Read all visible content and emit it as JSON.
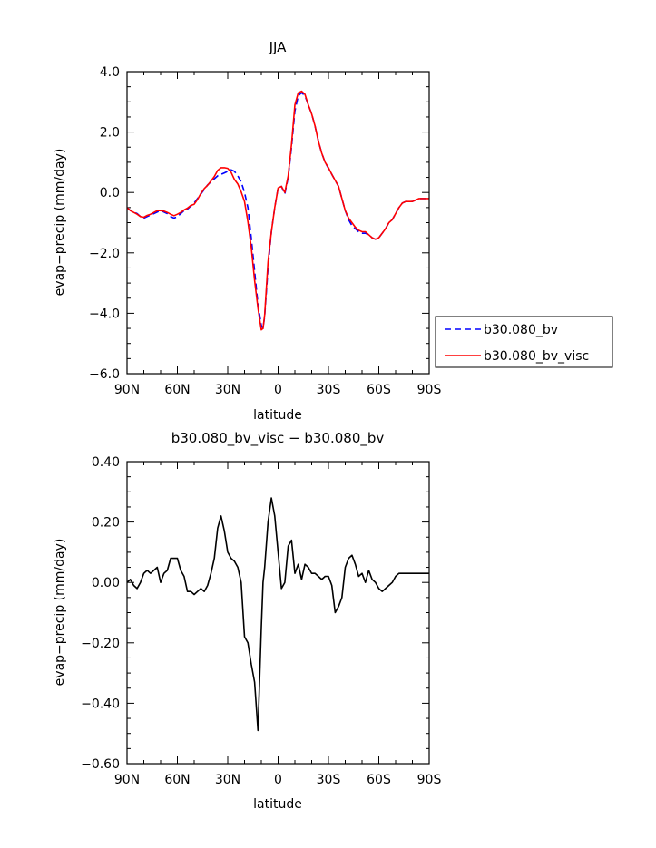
{
  "chart_data": [
    {
      "type": "line",
      "title": "JJA",
      "xlabel": "latitude",
      "ylabel": "evap−precip (mm/day)",
      "x_direction": "north-to-south",
      "xlim": [
        90,
        -90
      ],
      "ylim": [
        -6.0,
        4.0
      ],
      "x_ticks": [
        90,
        60,
        30,
        0,
        -30,
        -60,
        -90
      ],
      "x_tick_labels": [
        "90N",
        "60N",
        "30N",
        "0",
        "30S",
        "60S",
        "90S"
      ],
      "y_ticks": [
        -6.0,
        -4.0,
        -2.0,
        0.0,
        2.0,
        4.0
      ],
      "y_tick_labels": [
        "−6.0",
        "−4.0",
        "−2.0",
        "0.0",
        "2.0",
        "4.0"
      ],
      "legend_position": "right",
      "grid": false,
      "series": [
        {
          "name": "b30.080_bv",
          "color": "#0000ff",
          "dash": "dashed",
          "x": [
            90,
            88,
            86,
            84,
            82,
            80,
            78,
            76,
            74,
            72,
            70,
            68,
            66,
            64,
            62,
            60,
            58,
            56,
            54,
            52,
            50,
            48,
            46,
            44,
            42,
            40,
            38,
            36,
            34,
            32,
            30,
            28,
            26,
            24,
            22,
            20,
            18,
            16,
            14,
            12,
            10,
            9,
            8,
            6,
            4,
            2,
            0,
            -2,
            -4,
            -6,
            -8,
            -10,
            -12,
            -14,
            -16,
            -18,
            -20,
            -22,
            -24,
            -26,
            -28,
            -30,
            -32,
            -34,
            -36,
            -38,
            -40,
            -42,
            -44,
            -46,
            -48,
            -50,
            -52,
            -54,
            -56,
            -58,
            -60,
            -62,
            -64,
            -66,
            -68,
            -70,
            -72,
            -74,
            -76,
            -78,
            -80,
            -82,
            -84,
            -86,
            -88,
            -90
          ],
          "y": [
            -0.5,
            -0.6,
            -0.65,
            -0.7,
            -0.8,
            -0.85,
            -0.8,
            -0.75,
            -0.7,
            -0.65,
            -0.6,
            -0.65,
            -0.7,
            -0.8,
            -0.85,
            -0.8,
            -0.7,
            -0.6,
            -0.55,
            -0.45,
            -0.35,
            -0.2,
            -0.05,
            0.1,
            0.25,
            0.35,
            0.45,
            0.55,
            0.6,
            0.65,
            0.7,
            0.75,
            0.7,
            0.55,
            0.35,
            0.0,
            -0.5,
            -1.5,
            -2.6,
            -3.7,
            -4.4,
            -4.5,
            -4.1,
            -2.5,
            -1.3,
            -0.5,
            0.15,
            0.2,
            -0.05,
            0.5,
            1.5,
            2.7,
            3.2,
            3.3,
            3.2,
            2.9,
            2.6,
            2.2,
            1.7,
            1.3,
            1.0,
            0.8,
            0.6,
            0.4,
            0.2,
            -0.2,
            -0.6,
            -0.9,
            -1.1,
            -1.2,
            -1.3,
            -1.35,
            -1.35,
            -1.4,
            -1.5,
            -1.55,
            -1.5,
            -1.35,
            -1.2,
            -1.0,
            -0.9,
            -0.7,
            -0.5,
            -0.35,
            -0.3,
            -0.3,
            -0.3,
            -0.25,
            -0.2,
            -0.2,
            -0.2,
            -0.2
          ]
        },
        {
          "name": "b30.080_bv_visc",
          "color": "#ff0000",
          "dash": "solid",
          "x": [
            90,
            88,
            86,
            84,
            82,
            80,
            78,
            76,
            74,
            72,
            70,
            68,
            66,
            64,
            62,
            60,
            58,
            56,
            54,
            52,
            50,
            48,
            46,
            44,
            42,
            40,
            38,
            36,
            34,
            32,
            30,
            28,
            26,
            24,
            22,
            20,
            18,
            16,
            14,
            12,
            10,
            9,
            8,
            6,
            4,
            2,
            0,
            -2,
            -4,
            -6,
            -8,
            -10,
            -12,
            -14,
            -16,
            -18,
            -20,
            -22,
            -24,
            -26,
            -28,
            -30,
            -32,
            -34,
            -36,
            -38,
            -40,
            -42,
            -44,
            -46,
            -48,
            -50,
            -52,
            -54,
            -56,
            -58,
            -60,
            -62,
            -64,
            -66,
            -68,
            -70,
            -72,
            -74,
            -76,
            -78,
            -80,
            -82,
            -84,
            -86,
            -88,
            -90
          ],
          "y": [
            -0.5,
            -0.6,
            -0.66,
            -0.72,
            -0.8,
            -0.82,
            -0.76,
            -0.72,
            -0.66,
            -0.6,
            -0.6,
            -0.62,
            -0.66,
            -0.72,
            -0.77,
            -0.72,
            -0.66,
            -0.58,
            -0.52,
            -0.43,
            -0.39,
            -0.23,
            -0.03,
            0.13,
            0.24,
            0.38,
            0.53,
            0.73,
            0.82,
            0.82,
            0.8,
            0.67,
            0.43,
            0.28,
            0.02,
            -0.3,
            -0.97,
            -1.81,
            -2.91,
            -3.83,
            -4.55,
            -4.5,
            -4.05,
            -2.3,
            -1.3,
            -0.5,
            0.15,
            0.2,
            0.0,
            0.55,
            1.6,
            2.9,
            3.3,
            3.35,
            3.25,
            2.9,
            2.6,
            2.2,
            1.7,
            1.3,
            1.0,
            0.82,
            0.6,
            0.4,
            0.2,
            -0.2,
            -0.6,
            -0.85,
            -1.0,
            -1.15,
            -1.25,
            -1.3,
            -1.3,
            -1.4,
            -1.5,
            -1.55,
            -1.5,
            -1.35,
            -1.2,
            -1.0,
            -0.9,
            -0.7,
            -0.5,
            -0.35,
            -0.3,
            -0.3,
            -0.3,
            -0.25,
            -0.2,
            -0.2,
            -0.2,
            -0.2
          ]
        }
      ]
    },
    {
      "type": "line",
      "title": "b30.080_bv_visc − b30.080_bv",
      "xlabel": "latitude",
      "ylabel": "evap−precip (mm/day)",
      "x_direction": "north-to-south",
      "xlim": [
        90,
        -90
      ],
      "ylim": [
        -0.6,
        0.4
      ],
      "x_ticks": [
        90,
        60,
        30,
        0,
        -30,
        -60,
        -90
      ],
      "x_tick_labels": [
        "90N",
        "60N",
        "30N",
        "0",
        "30S",
        "60S",
        "90S"
      ],
      "y_ticks": [
        -0.6,
        -0.4,
        -0.2,
        0.0,
        0.2,
        0.4
      ],
      "y_tick_labels": [
        "−0.60",
        "−0.40",
        "−0.20",
        "0.00",
        "0.20",
        "0.40"
      ],
      "grid": false,
      "series": [
        {
          "color": "#000000",
          "dash": "solid",
          "x": [
            90,
            88,
            86,
            84,
            82,
            80,
            78,
            76,
            74,
            72,
            70,
            68,
            66,
            64,
            62,
            60,
            58,
            56,
            54,
            52,
            50,
            48,
            46,
            44,
            42,
            40,
            38,
            36,
            34,
            32,
            30,
            28,
            26,
            24,
            22,
            20,
            18,
            16,
            14,
            12,
            10,
            9,
            8,
            6,
            4,
            2,
            0,
            -2,
            -4,
            -6,
            -8,
            -10,
            -12,
            -14,
            -16,
            -18,
            -20,
            -22,
            -24,
            -26,
            -28,
            -30,
            -32,
            -34,
            -36,
            -38,
            -40,
            -42,
            -44,
            -46,
            -48,
            -50,
            -52,
            -54,
            -56,
            -58,
            -60,
            -62,
            -64,
            -66,
            -68,
            -70,
            -72,
            -74,
            -76,
            -78,
            -80,
            -82,
            -84,
            -86,
            -88,
            -90
          ],
          "y": [
            0.0,
            0.01,
            -0.01,
            -0.02,
            0.0,
            0.03,
            0.04,
            0.03,
            0.04,
            0.05,
            0.0,
            0.03,
            0.04,
            0.08,
            0.08,
            0.08,
            0.04,
            0.02,
            -0.03,
            -0.03,
            -0.04,
            -0.03,
            -0.02,
            -0.03,
            -0.01,
            0.03,
            0.08,
            0.18,
            0.22,
            0.17,
            0.1,
            0.08,
            0.07,
            0.05,
            -0.0,
            -0.18,
            -0.2,
            -0.27,
            -0.33,
            -0.49,
            -0.15,
            0.0,
            0.05,
            0.2,
            0.28,
            0.22,
            0.1,
            -0.02,
            0.0,
            0.12,
            0.14,
            0.03,
            0.06,
            0.01,
            0.06,
            0.05,
            0.03,
            0.03,
            0.02,
            0.01,
            0.02,
            0.02,
            -0.01,
            -0.1,
            -0.08,
            -0.05,
            0.05,
            0.08,
            0.09,
            0.06,
            0.02,
            0.03,
            0.0,
            0.04,
            0.01,
            0.0,
            -0.02,
            -0.03,
            -0.02,
            -0.01,
            0.0,
            0.02,
            0.03,
            0.03,
            0.03,
            0.03,
            0.03,
            0.03,
            0.03,
            0.03,
            0.03,
            0.03
          ]
        }
      ]
    }
  ]
}
